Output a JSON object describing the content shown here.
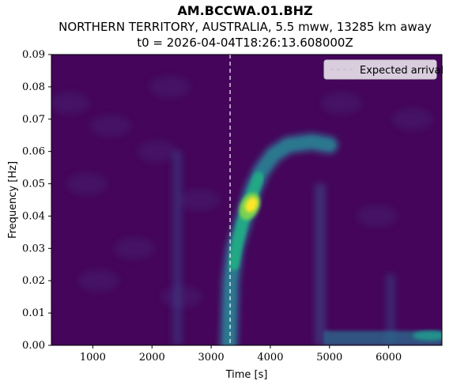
{
  "header": {
    "station": "AM.BCCWA.01.BHZ",
    "event": "NORTHERN TERRITORY, AUSTRALIA, 5.5 mww, 13285 km away",
    "t0": "t0 = 2026-04-04T18:26:13.608000Z"
  },
  "chart_data": {
    "type": "heatmap",
    "title": "AM.BCCWA.01.BHZ",
    "xlabel": "Time [s]",
    "ylabel": "Frequency [Hz]",
    "xlim": [
      300,
      6900
    ],
    "ylim": [
      0.0,
      0.09
    ],
    "x_ticks": [
      1000,
      2000,
      3000,
      4000,
      5000,
      6000
    ],
    "y_ticks": [
      0.0,
      0.01,
      0.02,
      0.03,
      0.04,
      0.05,
      0.06,
      0.07,
      0.08,
      0.09
    ],
    "y_tick_labels": [
      "0.00",
      "0.01",
      "0.02",
      "0.03",
      "0.04",
      "0.05",
      "0.06",
      "0.07",
      "0.08",
      "0.09"
    ],
    "colormap": "viridis",
    "expected_arrival_s": 3320,
    "legend": {
      "entries": [
        "Expected arrival"
      ],
      "placement": "upper right"
    },
    "features": [
      {
        "kind": "dispersion-arc",
        "points": [
          [
            3300,
            0.0
          ],
          [
            3330,
            0.02
          ],
          [
            3400,
            0.03
          ],
          [
            3500,
            0.036
          ],
          [
            3600,
            0.042
          ],
          [
            3700,
            0.048
          ],
          [
            3850,
            0.054
          ],
          [
            4050,
            0.059
          ],
          [
            4300,
            0.062
          ],
          [
            4700,
            0.063
          ],
          [
            5000,
            0.062
          ]
        ],
        "peak": {
          "time_s": 3650,
          "freq_hz": 0.043
        }
      },
      {
        "kind": "noise-band",
        "time_s": [
          4900,
          6900
        ],
        "freq_hz": 0.002
      }
    ]
  }
}
